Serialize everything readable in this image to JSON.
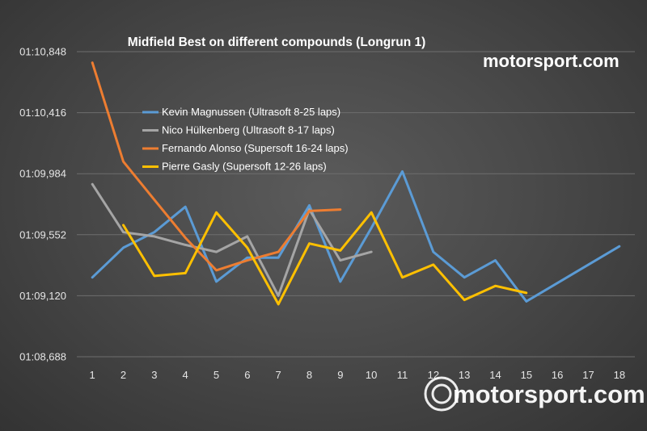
{
  "chart_data": {
    "type": "line",
    "title": "Midfield Best on different compounds (Longrun 1)",
    "xlabel": "",
    "ylabel": "",
    "categories": [
      "1",
      "2",
      "3",
      "4",
      "5",
      "6",
      "7",
      "8",
      "9",
      "10",
      "11",
      "12",
      "13",
      "14",
      "15",
      "16",
      "17",
      "18"
    ],
    "y_tick_labels": [
      "01:10,848",
      "01:10,416",
      "01:09,984",
      "01:09,552",
      "01:09,120",
      "01:08,688"
    ],
    "ylim": [
      68.688,
      70.848
    ],
    "grid": true,
    "legend_position": "top-left",
    "series": [
      {
        "name": "Kevin Magnussen (Ultrasoft 8-25 laps)",
        "color": "#5b9bd5",
        "values": [
          69.25,
          69.46,
          69.57,
          69.75,
          69.22,
          69.39,
          69.39,
          69.76,
          69.22,
          69.6,
          70.0,
          69.43,
          69.25,
          69.37,
          69.08,
          69.21,
          69.34,
          69.47
        ]
      },
      {
        "name": "Nico Hülkenberg (Ultrasoft 8-17 laps)",
        "color": "#a5a5a5",
        "values": [
          69.91,
          69.57,
          69.54,
          69.48,
          69.43,
          69.54,
          69.12,
          69.73,
          69.37,
          69.43,
          null,
          null,
          null,
          null,
          null,
          null,
          null,
          null
        ]
      },
      {
        "name": "Fernando Alonso (Supersoft 16-24 laps)",
        "color": "#ed7d31",
        "values": [
          70.77,
          70.07,
          69.8,
          69.53,
          69.3,
          69.37,
          69.43,
          69.72,
          69.73,
          null,
          null,
          null,
          null,
          null,
          null,
          null,
          null,
          null
        ]
      },
      {
        "name": "Pierre Gasly (Supersoft 12-26 laps)",
        "color": "#ffc000",
        "values": [
          null,
          69.62,
          69.26,
          69.28,
          69.71,
          69.46,
          69.06,
          69.49,
          69.44,
          69.71,
          69.25,
          69.34,
          69.09,
          69.19,
          69.14,
          null,
          null,
          null
        ]
      }
    ]
  },
  "branding": {
    "logo_text_top": "motorsport.com",
    "logo_text_bottom": "motorsport.com",
    "logo_color": "#ffffff"
  }
}
